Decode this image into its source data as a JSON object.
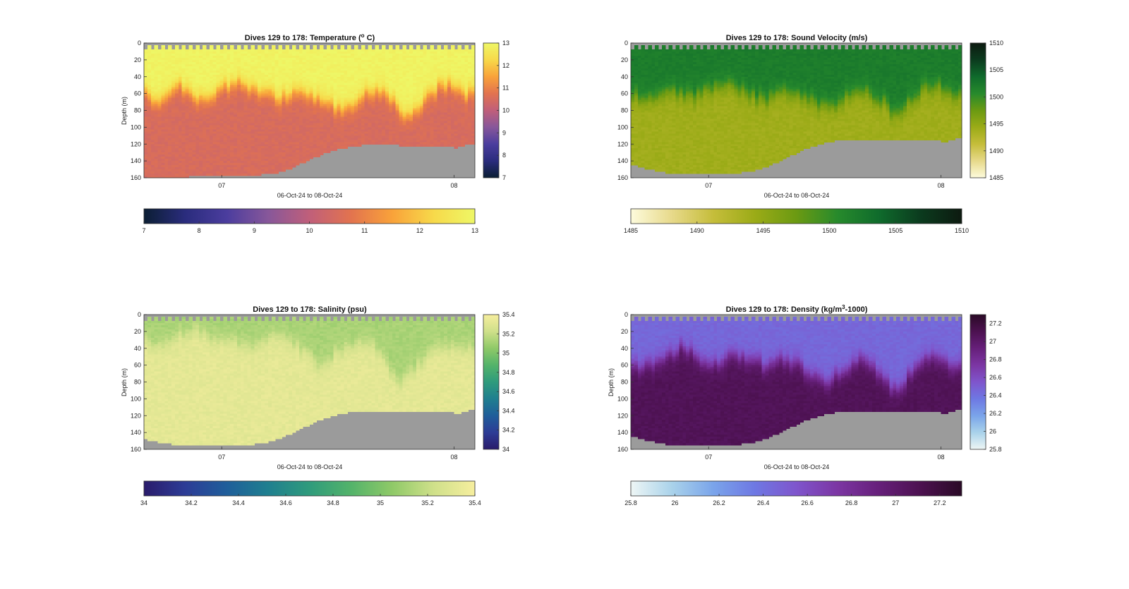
{
  "chart_data": [
    {
      "type": "heatmap",
      "title": "Dives 129 to 178: Temperature (",
      "title_sup": "o",
      "title_tail": " C)",
      "xlabel": "06-Oct-24 to 08-Oct-24",
      "ylabel": "Depth (m)",
      "x_ticks": [
        "07",
        "08"
      ],
      "y_ticks": [
        0,
        20,
        40,
        60,
        80,
        100,
        120,
        140,
        160
      ],
      "ylim": [
        0,
        160
      ],
      "colorbar_range": [
        7,
        13
      ],
      "colorbar_ticks": [
        7,
        8,
        9,
        10,
        11,
        12,
        13
      ],
      "colormap": [
        "#0b1e33",
        "#2a2c7d",
        "#4b3d9e",
        "#87579a",
        "#c05f7a",
        "#e2734f",
        "#f9a23a",
        "#f7d94a",
        "#eef766"
      ],
      "bottom_depth": [
        160,
        160,
        160,
        160,
        159,
        159,
        158,
        158,
        158,
        158,
        158,
        157,
        157,
        157,
        156,
        155,
        153,
        150,
        146,
        141,
        136,
        132,
        129,
        126,
        124,
        122,
        121,
        120,
        120,
        121,
        121,
        122,
        122,
        122,
        123,
        123,
        122,
        124,
        121,
        120
      ],
      "upper_value": 12.9,
      "upper_depth": [
        62,
        68,
        66,
        60,
        52,
        58,
        64,
        66,
        62,
        55,
        50,
        48,
        52,
        56,
        60,
        64,
        68,
        62,
        56,
        60,
        64,
        70,
        74,
        78,
        76,
        70,
        62,
        55,
        60,
        66,
        75,
        88,
        80,
        70,
        60,
        52,
        48,
        55,
        62,
        60
      ],
      "lower_value": 10.5
    },
    {
      "type": "heatmap",
      "title": "Dives 129 to 178: Sound Velocity (m/s)",
      "title_sup": "",
      "title_tail": "",
      "xlabel": "06-Oct-24 to 08-Oct-24",
      "ylabel": "",
      "x_ticks": [
        "07",
        "08"
      ],
      "y_ticks": [
        0,
        20,
        40,
        60,
        80,
        100,
        120,
        140,
        160
      ],
      "ylim": [
        0,
        160
      ],
      "colorbar_range": [
        1485,
        1510
      ],
      "colorbar_ticks": [
        1485,
        1490,
        1495,
        1500,
        1505,
        1510
      ],
      "colormap": [
        "#fdfbdc",
        "#e7d98a",
        "#c5bd3a",
        "#9bab17",
        "#6b9a12",
        "#278a2c",
        "#0f6b2c",
        "#0b3b1e",
        "#0d1a10"
      ],
      "bottom_depth": [
        145,
        148,
        150,
        152,
        154,
        155,
        155,
        156,
        156,
        156,
        156,
        155,
        155,
        154,
        152,
        150,
        147,
        143,
        138,
        133,
        128,
        124,
        121,
        118,
        116,
        115,
        114,
        114,
        114,
        115,
        115,
        116,
        116,
        115,
        116,
        116,
        115,
        117,
        115,
        112
      ],
      "upper_value": 1502,
      "upper_depth": [
        62,
        66,
        64,
        60,
        54,
        58,
        62,
        64,
        60,
        56,
        52,
        50,
        54,
        58,
        62,
        66,
        68,
        62,
        56,
        60,
        64,
        70,
        72,
        76,
        74,
        68,
        60,
        54,
        60,
        66,
        72,
        86,
        78,
        68,
        60,
        54,
        50,
        56,
        62,
        58
      ],
      "lower_value": 1494
    },
    {
      "type": "heatmap",
      "title": "Dives 129 to 178: Salinity (psu)",
      "title_sup": "",
      "title_tail": "",
      "xlabel": "06-Oct-24 to 08-Oct-24",
      "ylabel": "Depth (m)",
      "x_ticks": [
        "07",
        "08"
      ],
      "y_ticks": [
        0,
        20,
        40,
        60,
        80,
        100,
        120,
        140,
        160
      ],
      "ylim": [
        0,
        160
      ],
      "colorbar_range": [
        34,
        35.4
      ],
      "colorbar_ticks": [
        34,
        34.2,
        34.4,
        34.6,
        34.8,
        35,
        35.2,
        35.4
      ],
      "colormap": [
        "#2a1c6b",
        "#2d3c96",
        "#1f5e9a",
        "#1f7f8f",
        "#2f9b7c",
        "#53b36a",
        "#8fc968",
        "#cfe08a",
        "#f6ee9e"
      ],
      "bottom_depth": [
        148,
        150,
        152,
        154,
        155,
        155,
        156,
        156,
        156,
        156,
        156,
        155,
        155,
        154,
        152,
        150,
        147,
        143,
        138,
        133,
        128,
        124,
        121,
        118,
        116,
        115,
        114,
        114,
        114,
        115,
        115,
        116,
        116,
        115,
        116,
        116,
        115,
        117,
        115,
        112
      ],
      "upper_value": 35.12,
      "upper_depth": [
        32,
        36,
        34,
        30,
        24,
        22,
        20,
        24,
        28,
        30,
        32,
        34,
        38,
        36,
        32,
        28,
        26,
        30,
        36,
        44,
        56,
        64,
        52,
        44,
        40,
        36,
        34,
        38,
        48,
        66,
        80,
        78,
        64,
        54,
        46,
        40,
        36,
        40,
        44,
        40
      ],
      "lower_value": 35.32
    },
    {
      "type": "heatmap",
      "title": "Dives 129 to 178: Density (kg/m",
      "title_sup": "3",
      "title_tail": "-1000)",
      "xlabel": "06-Oct-24 to 08-Oct-24",
      "ylabel": "Depth (m)",
      "x_ticks": [
        "07",
        "08"
      ],
      "y_ticks": [
        0,
        20,
        40,
        60,
        80,
        100,
        120,
        140,
        160
      ],
      "ylim": [
        0,
        160
      ],
      "colorbar_range": [
        25.8,
        27.3
      ],
      "colorbar_ticks": [
        25.8,
        26,
        26.2,
        26.4,
        26.6,
        26.8,
        27,
        27.2
      ],
      "colormap": [
        "#eef6f5",
        "#a9d2ea",
        "#7aa4ea",
        "#6e78e3",
        "#7f55cc",
        "#7c36a3",
        "#661f7a",
        "#4c1150",
        "#2a0a26"
      ],
      "bottom_depth": [
        145,
        148,
        150,
        152,
        154,
        155,
        155,
        156,
        156,
        156,
        156,
        155,
        155,
        154,
        152,
        150,
        147,
        143,
        138,
        133,
        128,
        124,
        121,
        118,
        116,
        115,
        114,
        114,
        114,
        115,
        115,
        116,
        116,
        115,
        116,
        116,
        115,
        117,
        115,
        112
      ],
      "upper_value": 26.45,
      "upper_depth": [
        60,
        64,
        62,
        58,
        50,
        44,
        40,
        46,
        52,
        56,
        58,
        52,
        48,
        50,
        54,
        58,
        62,
        58,
        52,
        56,
        62,
        70,
        74,
        80,
        76,
        68,
        60,
        54,
        60,
        68,
        78,
        90,
        84,
        72,
        62,
        54,
        50,
        56,
        62,
        58
      ],
      "lower_value": 27.08
    }
  ]
}
